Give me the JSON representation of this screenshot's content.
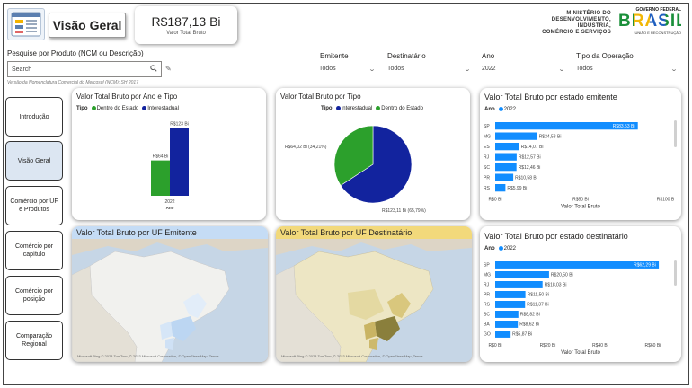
{
  "header": {
    "title": "Visão Geral",
    "kpi": {
      "value": "R$187,13 Bi",
      "label": "Valor Total Bruto"
    },
    "gov_logo": {
      "lines": [
        "MINISTÉRIO DO",
        "DESENVOLVIMENTO, INDÚSTRIA,",
        "COMÉRCIO E SERVIÇOS"
      ]
    },
    "brasil_logo": {
      "top": "GOVERNO FEDERAL",
      "word": "BRASIL",
      "sub": "UNIÃO E RECONSTRUÇÃO"
    }
  },
  "filters": {
    "search_label": "Pesquise por Produto (NCM ou Descrição)",
    "search_placeholder": "Search",
    "search_note": "Versão da Nomenclatura Comercial do Mercosul (NCM): SH 2017",
    "emitente": {
      "label": "Emitente",
      "value": "Todos"
    },
    "destinatario": {
      "label": "Destinatário",
      "value": "Todos"
    },
    "ano": {
      "label": "Ano",
      "value": "2022"
    },
    "tipo_operacao": {
      "label": "Tipo da Operação",
      "value": "Todos"
    }
  },
  "nav": {
    "items": [
      {
        "label": "Introdução"
      },
      {
        "label": "Visão Geral"
      },
      {
        "label": "Comércio por UF e Produtos"
      },
      {
        "label": "Comércio por capítulo"
      },
      {
        "label": "Comércio por posição"
      },
      {
        "label": "Comparação Regional"
      }
    ]
  },
  "colors": {
    "dentro": "#2ca02c",
    "inter": "#12239e",
    "bar_blue": "#118dff",
    "map_blue_head": "#c5dcf5",
    "map_yellow_head": "#f2d97b"
  },
  "chart_data": [
    {
      "type": "bar",
      "title": "Valor Total Bruto por Ano e Tipo",
      "legend_title": "Tipo",
      "categories": [
        "2022"
      ],
      "xlabel": "Ano",
      "series": [
        {
          "name": "Dentro do Estado",
          "values": [
            64
          ],
          "label": "R$64 Bi"
        },
        {
          "name": "Interestadual",
          "values": [
            123
          ],
          "label": "R$123 Bi"
        }
      ],
      "ylim": [
        0,
        130
      ]
    },
    {
      "type": "pie",
      "title": "Valor Total Bruto por Tipo",
      "legend_title": "Tipo",
      "slices": [
        {
          "name": "Interestadual",
          "value": 123.11,
          "label": "R$123,11 Bi (65,79%)"
        },
        {
          "name": "Dentro do Estado",
          "value": 64.02,
          "label": "R$64,02 Bi (34,21%)"
        }
      ]
    },
    {
      "type": "bar",
      "orientation": "horizontal",
      "title": "Valor Total Bruto por estado emitente",
      "legend_title": "Ano",
      "legend_item": "2022",
      "categories": [
        "SP",
        "MG",
        "ES",
        "RJ",
        "SC",
        "PR",
        "RS"
      ],
      "values": [
        83.53,
        24.58,
        14.07,
        12.57,
        12.46,
        10.58,
        5.99
      ],
      "labels": [
        "R$83,53 Bi",
        "R$24,58 Bi",
        "R$14,07 Bi",
        "R$12,57 Bi",
        "R$12,46 Bi",
        "R$10,58 Bi",
        "R$5,99 Bi"
      ],
      "xticks": [
        "R$0 Bi",
        "R$50 Bi",
        "R$100 Bi"
      ],
      "xlim": [
        0,
        100
      ],
      "xlabel": "Valor Total Bruto"
    },
    {
      "type": "bar",
      "orientation": "horizontal",
      "title": "Valor Total Bruto por estado destinatário",
      "legend_title": "Ano",
      "legend_item": "2022",
      "categories": [
        "SP",
        "MG",
        "RJ",
        "PR",
        "RS",
        "SC",
        "BA",
        "GO"
      ],
      "values": [
        62.29,
        20.5,
        18.03,
        11.5,
        11.37,
        8.82,
        8.62,
        5.87
      ],
      "labels": [
        "R$62,29 Bi",
        "R$20,50 Bi",
        "R$18,03 Bi",
        "R$11,50 Bi",
        "R$11,37 Bi",
        "R$8,82 Bi",
        "R$8,62 Bi",
        "R$5,87 Bi"
      ],
      "xticks": [
        "R$0 Bi",
        "R$20 Bi",
        "R$40 Bi",
        "R$60 Bi"
      ],
      "xlim": [
        0,
        65
      ],
      "xlabel": "Valor Total Bruto"
    }
  ],
  "maps": {
    "emitente": {
      "title": "Valor Total Bruto por UF Emitente"
    },
    "destinatario": {
      "title": "Valor Total Bruto por UF Destinatário"
    },
    "attribution": "Microsoft Bing  © 2023 TomTom, © 2023 Microsoft Corporation, © OpenStreetMap, Terms"
  }
}
